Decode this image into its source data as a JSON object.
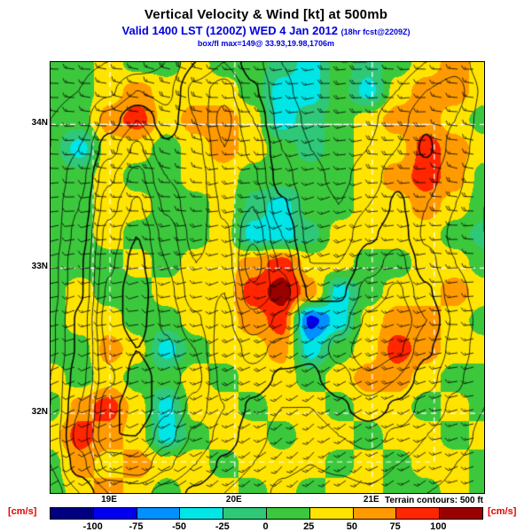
{
  "header": {
    "title": "Vertical Velocity & Wind [kt] at 500mb",
    "valid_line": "Valid 1400 LST (1200Z) WED 4 Jan 2012",
    "fcst_note": "(18hr fcst@2209Z)",
    "info_line": "box/fl max=149@ 33.93,19.98,1706m"
  },
  "map": {
    "lat_labels": [
      {
        "label": "34N",
        "fy": 0.145
      },
      {
        "label": "33N",
        "fy": 0.478
      },
      {
        "label": "32N",
        "fy": 0.815
      }
    ],
    "lon_labels": [
      {
        "label": "19E",
        "fx": 0.137
      },
      {
        "label": "20E",
        "fx": 0.425
      },
      {
        "label": "21E",
        "fx": 0.742
      }
    ],
    "inner_box": {
      "fx0": 0.098,
      "fy0": 0.145,
      "fx1": 0.885,
      "fy1": 0.928
    },
    "terrain_note": "Terrain contours: 500 ft"
  },
  "colorbar": {
    "units_left": "[cm/s]",
    "units_right": "[cm/s]",
    "tick_labels": [
      "-100",
      "-75",
      "-50",
      "-25",
      "0",
      "25",
      "50",
      "75",
      "100"
    ]
  },
  "chart_data": {
    "type": "heatmap",
    "title": "Vertical Velocity & Wind [kt] at 500mb",
    "units": "cm/s",
    "levels": [
      -100,
      -75,
      -50,
      -25,
      0,
      25,
      50,
      75,
      100
    ],
    "palette": [
      "#000080",
      "#0000ee",
      "#0090ff",
      "#00e6e6",
      "#2fc878",
      "#3cc83c",
      "#ffe400",
      "#ff9b00",
      "#ff2600",
      "#990000"
    ],
    "x_ticks": [
      "19E",
      "20E",
      "21E"
    ],
    "y_ticks": [
      "34N",
      "33N",
      "32N"
    ],
    "terrain_contour_interval_ft": 500,
    "terrain_levels_ft": [
      1000,
      1500,
      2000,
      2500,
      3000,
      3500,
      4000,
      4500,
      5000
    ],
    "annotation": "box/fl max=149@ 33.93,19.98,1706m",
    "vertical_velocity_grid": [
      [
        12,
        12,
        38,
        12,
        12,
        38,
        12,
        12,
        -10,
        -38,
        12,
        -10,
        12,
        38,
        62,
        38
      ],
      [
        12,
        12,
        38,
        62,
        38,
        38,
        38,
        12,
        -38,
        -38,
        12,
        -38,
        38,
        62,
        62,
        38
      ],
      [
        12,
        12,
        62,
        88,
        38,
        62,
        62,
        38,
        -38,
        -10,
        12,
        38,
        62,
        62,
        38,
        12
      ],
      [
        12,
        -38,
        38,
        38,
        12,
        38,
        62,
        38,
        12,
        -10,
        12,
        38,
        38,
        88,
        62,
        38
      ],
      [
        12,
        12,
        38,
        12,
        12,
        38,
        38,
        12,
        12,
        12,
        12,
        38,
        62,
        88,
        62,
        12
      ],
      [
        12,
        12,
        38,
        38,
        12,
        12,
        38,
        -10,
        -38,
        12,
        12,
        38,
        38,
        62,
        38,
        12
      ],
      [
        12,
        12,
        38,
        12,
        12,
        12,
        38,
        -38,
        -38,
        -10,
        38,
        38,
        38,
        38,
        12,
        -10
      ],
      [
        12,
        12,
        12,
        38,
        12,
        38,
        38,
        62,
        88,
        38,
        38,
        12,
        12,
        38,
        38,
        12
      ],
      [
        12,
        38,
        12,
        12,
        38,
        38,
        38,
        88,
        112,
        62,
        -38,
        12,
        38,
        38,
        62,
        38
      ],
      [
        12,
        38,
        38,
        12,
        12,
        38,
        38,
        62,
        88,
        -85,
        -38,
        38,
        62,
        62,
        38,
        12
      ],
      [
        12,
        12,
        62,
        38,
        -38,
        12,
        38,
        38,
        62,
        -38,
        12,
        38,
        88,
        62,
        38,
        38
      ],
      [
        38,
        12,
        38,
        12,
        12,
        38,
        12,
        38,
        38,
        12,
        38,
        62,
        62,
        38,
        12,
        12
      ],
      [
        12,
        62,
        88,
        38,
        -38,
        38,
        38,
        12,
        38,
        38,
        12,
        38,
        38,
        12,
        38,
        12
      ],
      [
        38,
        88,
        62,
        38,
        -38,
        12,
        38,
        38,
        12,
        38,
        38,
        12,
        38,
        38,
        12,
        38
      ],
      [
        12,
        62,
        38,
        62,
        38,
        38,
        12,
        38,
        38,
        38,
        12,
        38,
        12,
        38,
        38,
        12
      ],
      [
        12,
        38,
        62,
        38,
        12,
        38,
        38,
        12,
        38,
        12,
        38,
        38,
        12,
        12,
        38,
        12
      ]
    ],
    "terrain_height_ft_grid": [
      [
        800,
        900,
        1000,
        1200,
        1500,
        2500,
        3000,
        2200,
        1500,
        1200,
        1000,
        1000,
        1200,
        1500,
        1800,
        1200
      ],
      [
        900,
        1000,
        1400,
        2000,
        1800,
        3200,
        3800,
        2600,
        1600,
        1300,
        1100,
        1200,
        1500,
        2000,
        2200,
        1400
      ],
      [
        1000,
        1200,
        2200,
        3000,
        2200,
        3000,
        4200,
        3000,
        1800,
        1400,
        1200,
        1400,
        1800,
        2400,
        2000,
        1300
      ],
      [
        1000,
        1500,
        2800,
        3600,
        2600,
        2800,
        4000,
        3400,
        2000,
        1500,
        1300,
        1500,
        2000,
        2600,
        1800,
        1200
      ],
      [
        1100,
        1800,
        3400,
        4200,
        3000,
        2600,
        3800,
        3600,
        2200,
        1600,
        1400,
        1700,
        2400,
        2200,
        1600,
        1100
      ],
      [
        1200,
        2000,
        3800,
        4600,
        3400,
        2600,
        3600,
        4000,
        2600,
        1700,
        1500,
        2000,
        2600,
        2000,
        1500,
        1000
      ],
      [
        1200,
        2200,
        4200,
        5000,
        3800,
        2800,
        3400,
        4400,
        3000,
        1800,
        1700,
        2400,
        2800,
        1900,
        1400,
        1000
      ],
      [
        1300,
        2400,
        4400,
        5200,
        4000,
        3000,
        3200,
        4800,
        3400,
        2000,
        2000,
        2800,
        3200,
        2200,
        1500,
        1100
      ],
      [
        1300,
        2400,
        4600,
        5400,
        4200,
        3200,
        3000,
        4400,
        3800,
        2400,
        2400,
        3200,
        3600,
        2600,
        1700,
        1200
      ],
      [
        1400,
        2600,
        4800,
        5200,
        4400,
        3600,
        2800,
        3800,
        3400,
        2800,
        2800,
        3600,
        4000,
        3000,
        1900,
        1300
      ],
      [
        1400,
        2600,
        4600,
        5000,
        4600,
        4000,
        2600,
        3200,
        2800,
        2600,
        3200,
        4000,
        3600,
        2600,
        1800,
        1200
      ],
      [
        1500,
        2800,
        4400,
        5200,
        4800,
        4200,
        2800,
        2800,
        2400,
        2400,
        2800,
        3400,
        3000,
        2200,
        1600,
        1100
      ],
      [
        1500,
        3000,
        4800,
        5400,
        4600,
        3800,
        3000,
        2400,
        2000,
        2000,
        2400,
        2800,
        2400,
        1800,
        1400,
        1000
      ],
      [
        1600,
        3200,
        5000,
        5000,
        4200,
        3400,
        2800,
        2200,
        1800,
        1700,
        2000,
        2200,
        1900,
        1500,
        1200,
        900
      ],
      [
        1500,
        2800,
        4200,
        4400,
        3600,
        3000,
        2400,
        2000,
        1600,
        1500,
        1600,
        1800,
        1500,
        1300,
        1000,
        800
      ],
      [
        1200,
        2000,
        3000,
        3200,
        2800,
        2400,
        2000,
        1700,
        1400,
        1200,
        1300,
        1400,
        1200,
        1000,
        900,
        700
      ]
    ],
    "wind": {
      "dir_deg": [
        [
          275,
          280,
          285,
          270,
          260,
          265,
          270,
          275
        ],
        [
          270,
          275,
          280,
          265,
          255,
          260,
          270,
          280
        ],
        [
          265,
          270,
          270,
          260,
          250,
          255,
          265,
          275
        ],
        [
          260,
          265,
          260,
          255,
          245,
          250,
          260,
          270
        ],
        [
          255,
          258,
          255,
          250,
          240,
          245,
          255,
          265
        ],
        [
          250,
          252,
          250,
          245,
          238,
          242,
          250,
          260
        ],
        [
          245,
          248,
          245,
          240,
          232,
          238,
          245,
          255
        ],
        [
          240,
          245,
          240,
          235,
          228,
          232,
          240,
          250
        ]
      ],
      "speed_kt": [
        [
          15,
          15,
          20,
          15,
          15,
          20,
          15,
          15
        ],
        [
          15,
          20,
          15,
          15,
          15,
          15,
          20,
          15
        ],
        [
          10,
          15,
          15,
          20,
          15,
          15,
          15,
          20
        ],
        [
          10,
          15,
          20,
          15,
          15,
          20,
          15,
          15
        ],
        [
          15,
          10,
          15,
          15,
          20,
          15,
          15,
          15
        ],
        [
          10,
          15,
          15,
          20,
          15,
          15,
          20,
          15
        ],
        [
          10,
          10,
          15,
          15,
          15,
          15,
          15,
          15
        ],
        [
          10,
          15,
          10,
          15,
          15,
          15,
          15,
          15
        ]
      ]
    }
  }
}
